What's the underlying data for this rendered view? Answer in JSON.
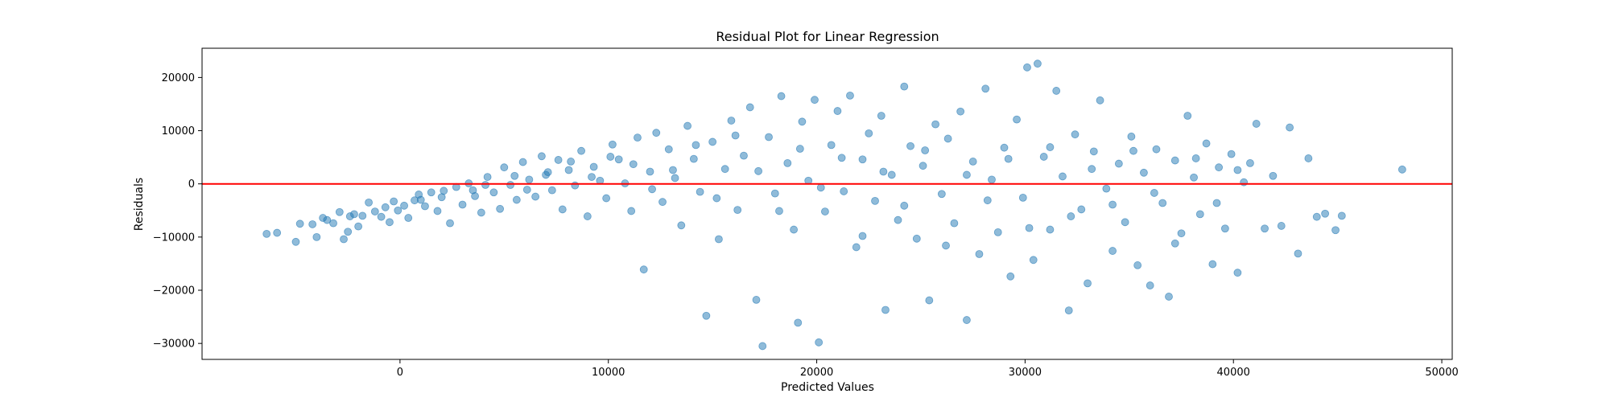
{
  "chart_data": {
    "type": "scatter",
    "title": "Residual Plot for Linear Regression",
    "xlabel": "Predicted Values",
    "ylabel": "Residuals",
    "xlim": [
      -9500,
      50500
    ],
    "ylim": [
      -33000,
      25500
    ],
    "xticks": [
      0,
      10000,
      20000,
      30000,
      40000,
      50000
    ],
    "yticks": [
      -30000,
      -20000,
      -10000,
      0,
      10000,
      20000
    ],
    "grid": false,
    "legend": "none",
    "point_color": "#1f77b4",
    "point_alpha": 0.5,
    "reference_line": {
      "y": 0,
      "color": "#ff0000"
    },
    "series": [
      {
        "points": [
          [
            -6400,
            -9400
          ],
          [
            -5900,
            -9200
          ],
          [
            -5000,
            -10900
          ],
          [
            -4800,
            -7500
          ],
          [
            -4200,
            -7600
          ],
          [
            -4000,
            -10000
          ],
          [
            -3700,
            -6400
          ],
          [
            -3500,
            -6800
          ],
          [
            -3200,
            -7400
          ],
          [
            -2900,
            -5300
          ],
          [
            -2700,
            -10400
          ],
          [
            -2500,
            -9000
          ],
          [
            -2400,
            -6100
          ],
          [
            -2200,
            -5700
          ],
          [
            -2000,
            -8000
          ],
          [
            -1800,
            -6000
          ],
          [
            -1500,
            -3500
          ],
          [
            -1200,
            -5200
          ],
          [
            -900,
            -6200
          ],
          [
            -700,
            -4400
          ],
          [
            -500,
            -7200
          ],
          [
            -300,
            -3300
          ],
          [
            -100,
            -5000
          ],
          [
            200,
            -4100
          ],
          [
            400,
            -6400
          ],
          [
            700,
            -3100
          ],
          [
            900,
            -2000
          ],
          [
            1200,
            -4200
          ],
          [
            1500,
            -1600
          ],
          [
            1800,
            -5100
          ],
          [
            2100,
            -1300
          ],
          [
            2400,
            -7400
          ],
          [
            2700,
            -600
          ],
          [
            3000,
            -3900
          ],
          [
            3300,
            100
          ],
          [
            3600,
            -2300
          ],
          [
            3900,
            -5400
          ],
          [
            4200,
            1300
          ],
          [
            4500,
            -1600
          ],
          [
            4800,
            -4700
          ],
          [
            5000,
            3100
          ],
          [
            5300,
            -200
          ],
          [
            5600,
            -3000
          ],
          [
            5900,
            4100
          ],
          [
            6200,
            800
          ],
          [
            6500,
            -2400
          ],
          [
            6800,
            5200
          ],
          [
            7000,
            1700
          ],
          [
            7300,
            -1200
          ],
          [
            7600,
            4500
          ],
          [
            7800,
            -4800
          ],
          [
            8100,
            2600
          ],
          [
            8400,
            -300
          ],
          [
            8700,
            6200
          ],
          [
            9000,
            -6100
          ],
          [
            9300,
            3200
          ],
          [
            9600,
            600
          ],
          [
            9900,
            -2700
          ],
          [
            10200,
            7400
          ],
          [
            10500,
            4600
          ],
          [
            10800,
            100
          ],
          [
            11100,
            -5100
          ],
          [
            11400,
            8700
          ],
          [
            11700,
            -16100
          ],
          [
            12000,
            2300
          ],
          [
            12300,
            9600
          ],
          [
            12600,
            -3400
          ],
          [
            12900,
            6500
          ],
          [
            13200,
            1100
          ],
          [
            13500,
            -7800
          ],
          [
            13800,
            10900
          ],
          [
            14100,
            4700
          ],
          [
            14400,
            -1500
          ],
          [
            14700,
            -24800
          ],
          [
            15000,
            7900
          ],
          [
            15300,
            -10400
          ],
          [
            15600,
            2800
          ],
          [
            15900,
            11900
          ],
          [
            16200,
            -4900
          ],
          [
            16500,
            5300
          ],
          [
            16800,
            14400
          ],
          [
            17100,
            -21800
          ],
          [
            17400,
            -30500
          ],
          [
            17700,
            8800
          ],
          [
            18000,
            -1800
          ],
          [
            18300,
            16500
          ],
          [
            18600,
            3900
          ],
          [
            18900,
            -8600
          ],
          [
            19100,
            -26100
          ],
          [
            19300,
            11700
          ],
          [
            19600,
            600
          ],
          [
            19900,
            15800
          ],
          [
            20100,
            -29800
          ],
          [
            20400,
            -5200
          ],
          [
            20700,
            7300
          ],
          [
            21000,
            13700
          ],
          [
            21300,
            -1400
          ],
          [
            21600,
            16600
          ],
          [
            21900,
            -11900
          ],
          [
            22200,
            4600
          ],
          [
            22500,
            9500
          ],
          [
            22800,
            -3200
          ],
          [
            23100,
            12800
          ],
          [
            23300,
            -23700
          ],
          [
            23600,
            1700
          ],
          [
            23900,
            -6800
          ],
          [
            24200,
            18300
          ],
          [
            24500,
            7100
          ],
          [
            24800,
            -10300
          ],
          [
            25100,
            3400
          ],
          [
            25400,
            -21900
          ],
          [
            25700,
            11200
          ],
          [
            26000,
            -1900
          ],
          [
            26300,
            8500
          ],
          [
            26600,
            -7400
          ],
          [
            26900,
            13600
          ],
          [
            27200,
            -25600
          ],
          [
            27500,
            4200
          ],
          [
            27800,
            -13200
          ],
          [
            28100,
            17900
          ],
          [
            28400,
            800
          ],
          [
            28700,
            -9100
          ],
          [
            29000,
            6800
          ],
          [
            29300,
            -17400
          ],
          [
            29600,
            12100
          ],
          [
            29900,
            -2600
          ],
          [
            30100,
            21900
          ],
          [
            30400,
            -14300
          ],
          [
            30600,
            22600
          ],
          [
            30900,
            5100
          ],
          [
            31200,
            -8600
          ],
          [
            31500,
            17500
          ],
          [
            31800,
            1400
          ],
          [
            32100,
            -23800
          ],
          [
            32400,
            9300
          ],
          [
            32700,
            -4800
          ],
          [
            33000,
            -18700
          ],
          [
            33300,
            6100
          ],
          [
            33600,
            15700
          ],
          [
            33900,
            -900
          ],
          [
            34200,
            -12600
          ],
          [
            34500,
            3800
          ],
          [
            34800,
            -7200
          ],
          [
            35100,
            8900
          ],
          [
            35400,
            -15300
          ],
          [
            35700,
            2100
          ],
          [
            36000,
            -19100
          ],
          [
            36300,
            6500
          ],
          [
            36600,
            -3600
          ],
          [
            36900,
            -21200
          ],
          [
            37200,
            4400
          ],
          [
            37500,
            -9300
          ],
          [
            37800,
            12800
          ],
          [
            38100,
            1200
          ],
          [
            38400,
            -5700
          ],
          [
            38700,
            7600
          ],
          [
            39000,
            -15100
          ],
          [
            39300,
            3100
          ],
          [
            39600,
            -8400
          ],
          [
            39900,
            5600
          ],
          [
            40200,
            -16700
          ],
          [
            40500,
            300
          ],
          [
            40800,
            3900
          ],
          [
            41100,
            11300
          ],
          [
            41500,
            -8400
          ],
          [
            41900,
            1500
          ],
          [
            42300,
            -7900
          ],
          [
            42700,
            10600
          ],
          [
            43100,
            -13100
          ],
          [
            43600,
            4800
          ],
          [
            44000,
            -6200
          ],
          [
            44400,
            -5600
          ],
          [
            44900,
            -8700
          ],
          [
            45200,
            -6000
          ],
          [
            48100,
            2700
          ],
          [
            1000,
            -3000
          ],
          [
            2000,
            -2500
          ],
          [
            3500,
            -1200
          ],
          [
            4100,
            -200
          ],
          [
            5500,
            1500
          ],
          [
            6100,
            -1100
          ],
          [
            7100,
            2200
          ],
          [
            8200,
            4200
          ],
          [
            9200,
            1300
          ],
          [
            10100,
            5100
          ],
          [
            11200,
            3700
          ],
          [
            12100,
            -1000
          ],
          [
            13100,
            2600
          ],
          [
            14200,
            7300
          ],
          [
            15200,
            -2700
          ],
          [
            16100,
            9100
          ],
          [
            17200,
            2400
          ],
          [
            18200,
            -5100
          ],
          [
            19200,
            6600
          ],
          [
            20200,
            -700
          ],
          [
            21200,
            4900
          ],
          [
            22200,
            -9800
          ],
          [
            23200,
            2300
          ],
          [
            24200,
            -4100
          ],
          [
            25200,
            6300
          ],
          [
            26200,
            -11600
          ],
          [
            27200,
            1700
          ],
          [
            28200,
            -3100
          ],
          [
            29200,
            4700
          ],
          [
            30200,
            -8300
          ],
          [
            31200,
            6900
          ],
          [
            32200,
            -6100
          ],
          [
            33200,
            2800
          ],
          [
            34200,
            -3900
          ],
          [
            35200,
            6200
          ],
          [
            36200,
            -1700
          ],
          [
            37200,
            -11200
          ],
          [
            38200,
            4800
          ],
          [
            39200,
            -3600
          ],
          [
            40200,
            2600
          ]
        ]
      }
    ]
  }
}
